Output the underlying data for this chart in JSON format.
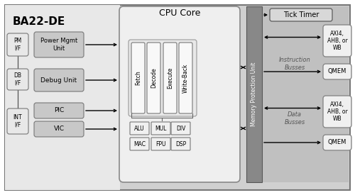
{
  "title": "BA22-DE",
  "pipeline_stages": [
    "Fetch",
    "Decode",
    "Execute",
    "Write-Back"
  ],
  "alu_units_row1": [
    "ALU",
    "MUL",
    "DIV"
  ],
  "alu_units_row2": [
    "MAC",
    "FPU",
    "DSP"
  ],
  "right_top_label": "AXI4,\nAHB, or\nWB",
  "right_qmem1": "QMEM",
  "right_bot_label": "AXI4,\nAHB, or\nWB",
  "right_qmem2": "QMEM",
  "tick_timer": "Tick Timer",
  "cpu_core_label": "CPU Core",
  "mpu_label": "Memory Protection Unit",
  "instr_busses": "Instruction\nBusses",
  "data_busses": "Data\nBusses",
  "pm_if": "PM\nI/F",
  "db_if": "DB\nI/F",
  "int_if": "INT\nI/F",
  "power_mgmt": "Power Mgmt\nUnit",
  "debug_unit": "Debug Unit",
  "pic": "PIC",
  "vic": "VIC",
  "col_bg": "#c8c8c8",
  "col_outer": "#d0d0d0",
  "col_cpu_bg": "#efefef",
  "col_mpu": "#888888",
  "col_right_area": "#c0c0c0",
  "col_if_box": "#e8e8e8",
  "col_unit_box": "#c8c8c8",
  "col_pipeline_box": "#f0f0f0",
  "col_alu_box": "#f0f0f0",
  "col_right_box": "#f0f0f0",
  "col_tick_box": "#d8d8d8"
}
